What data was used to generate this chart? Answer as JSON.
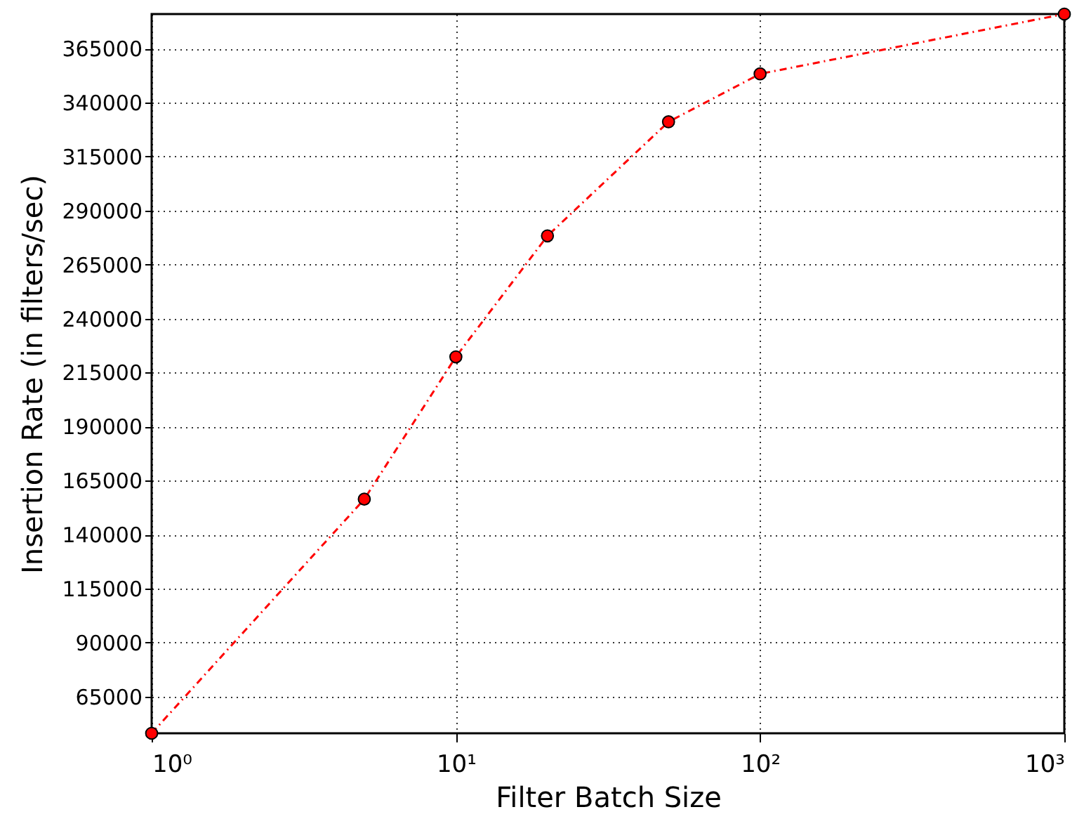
{
  "chart_data": {
    "type": "line",
    "xlabel": "Filter Batch Size",
    "ylabel": "Insertion Rate (in filters/sec)",
    "x": [
      1,
      5,
      10,
      20,
      50,
      100,
      1000
    ],
    "series": [
      {
        "color": "#ff0000",
        "values": [
          48000,
          156400,
          222300,
          278300,
          331100,
          353300,
          381000
        ]
      }
    ],
    "log": "x",
    "xlim": [
      1,
      1000
    ],
    "ylim": [
      48000,
      381000
    ],
    "xticks": [
      {
        "value": 1,
        "label": "10⁰"
      },
      {
        "value": 10,
        "label": "10¹"
      },
      {
        "value": 100,
        "label": "10²"
      },
      {
        "value": 1000,
        "label": "10³"
      }
    ],
    "yticks": [
      65000,
      90000,
      115000,
      140000,
      165000,
      190000,
      215000,
      240000,
      265000,
      290000,
      315000,
      340000,
      365000
    ],
    "grid": true,
    "marker": "circle",
    "line_style": "dashed"
  }
}
